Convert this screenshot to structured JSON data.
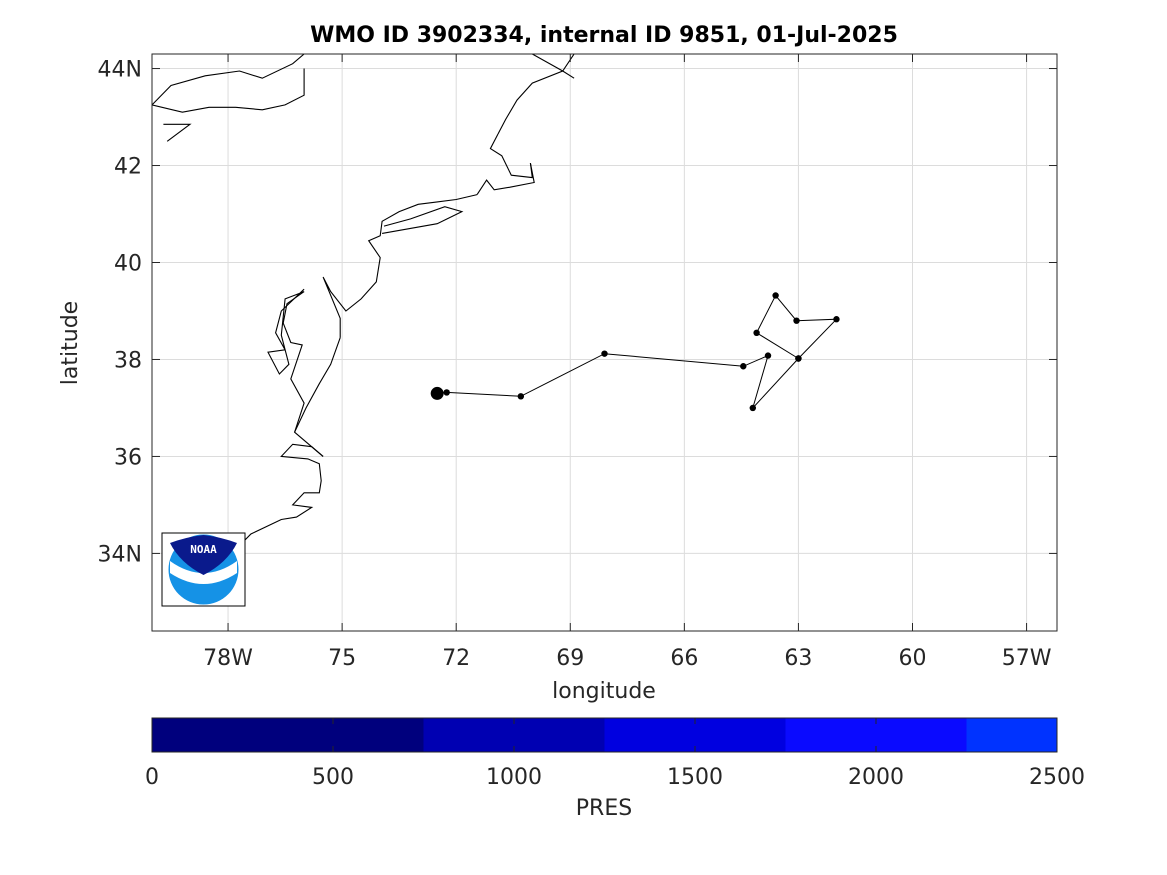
{
  "title": "WMO ID 3902334, internal ID 9851, 01-Jul-2025",
  "map": {
    "xlabel": "longitude",
    "ylabel": "latitude",
    "lon_range": [
      -80.0,
      -56.2
    ],
    "lat_range": [
      32.4,
      44.3
    ],
    "lon_ticks": [
      {
        "value": -78,
        "label": "78W"
      },
      {
        "value": -75,
        "label": "75"
      },
      {
        "value": -72,
        "label": "72"
      },
      {
        "value": -69,
        "label": "69"
      },
      {
        "value": -66,
        "label": "66"
      },
      {
        "value": -63,
        "label": "63"
      },
      {
        "value": -60,
        "label": "60"
      },
      {
        "value": -57,
        "label": "57W"
      }
    ],
    "lat_ticks": [
      {
        "value": 34,
        "label": "34N"
      },
      {
        "value": 36,
        "label": "36"
      },
      {
        "value": 38,
        "label": "38"
      },
      {
        "value": 40,
        "label": "40"
      },
      {
        "value": 42,
        "label": "42"
      },
      {
        "value": 44,
        "label": "44N"
      }
    ],
    "grid": true,
    "logo": "noaa-logo",
    "logo_text": "NOAA"
  },
  "chart_data": {
    "type": "scatter",
    "series": [
      {
        "lon": [
          -72.5,
          -72.25,
          -70.3,
          -68.1,
          -64.45,
          -63.8,
          -64.2,
          -63.9,
          -63.35,
          -62.25,
          -63.0,
          -64.4,
          -63.3,
          -64.2
        ],
        "lat": [
          37.3,
          37.32,
          37.24,
          38.12,
          37.86,
          38.08,
          37.0,
          37.86,
          39.32,
          38.8,
          38.83,
          38.02,
          38.55,
          37.0
        ],
        "start_marker": {
          "lon": -72.5,
          "lat": 37.3
        }
      }
    ],
    "track_order_note": ""
  },
  "track": {
    "points": [
      [
        -72.5,
        37.3
      ],
      [
        -72.25,
        37.32
      ],
      [
        -70.3,
        37.24
      ],
      [
        -68.1,
        38.12
      ],
      [
        -64.45,
        37.86
      ],
      [
        -63.8,
        38.08
      ],
      [
        -64.2,
        37.0
      ],
      [
        -63.0,
        38.02
      ],
      [
        -62.0,
        38.83
      ],
      [
        -63.05,
        38.8
      ],
      [
        -63.6,
        39.32
      ],
      [
        -64.1,
        38.55
      ],
      [
        -63.0,
        38.02
      ]
    ]
  },
  "colorbar": {
    "label": "PRES",
    "range": [
      0,
      2500
    ],
    "ticks": [
      0,
      500,
      1000,
      1500,
      2000,
      2500
    ],
    "segments": [
      {
        "from": 0,
        "to": 750,
        "color": "#00007d"
      },
      {
        "from": 750,
        "to": 1250,
        "color": "#0000b2"
      },
      {
        "from": 1250,
        "to": 1750,
        "color": "#0000e0"
      },
      {
        "from": 1750,
        "to": 2250,
        "color": "#0a0aff"
      },
      {
        "from": 2250,
        "to": 2500,
        "color": "#0033ff"
      }
    ]
  },
  "coastline": [
    [
      [
        -80.0,
        43.25
      ],
      [
        -79.5,
        43.65
      ],
      [
        -78.6,
        43.85
      ],
      [
        -77.7,
        43.95
      ],
      [
        -77.1,
        43.8
      ],
      [
        -76.3,
        44.1
      ],
      [
        -76.0,
        44.3
      ]
    ],
    [
      [
        -80.0,
        43.25
      ],
      [
        -79.2,
        43.1
      ],
      [
        -78.5,
        43.2
      ],
      [
        -77.8,
        43.2
      ],
      [
        -77.1,
        43.15
      ],
      [
        -76.5,
        43.25
      ],
      [
        -76.0,
        43.45
      ],
      [
        -76.0,
        44.0
      ]
    ],
    [
      [
        -79.7,
        42.85
      ],
      [
        -79.0,
        42.85
      ],
      [
        -79.6,
        42.5
      ]
    ],
    [
      [
        -70.0,
        44.3
      ],
      [
        -69.2,
        43.95
      ],
      [
        -68.9,
        43.8
      ]
    ],
    [
      [
        -70.9,
        42.65
      ],
      [
        -70.7,
        42.95
      ],
      [
        -70.4,
        43.35
      ],
      [
        -70.0,
        43.7
      ],
      [
        -69.2,
        43.95
      ],
      [
        -68.9,
        44.3
      ]
    ],
    [
      [
        -70.9,
        42.65
      ],
      [
        -71.1,
        42.35
      ],
      [
        -70.8,
        42.2
      ],
      [
        -70.55,
        41.8
      ],
      [
        -70.0,
        41.75
      ],
      [
        -70.05,
        42.05
      ]
    ],
    [
      [
        -70.05,
        42.05
      ],
      [
        -69.95,
        41.65
      ],
      [
        -70.6,
        41.55
      ],
      [
        -71.0,
        41.5
      ],
      [
        -71.2,
        41.7
      ],
      [
        -71.45,
        41.4
      ]
    ],
    [
      [
        -71.45,
        41.4
      ],
      [
        -72.0,
        41.3
      ],
      [
        -72.5,
        41.25
      ],
      [
        -73.0,
        41.2
      ],
      [
        -73.5,
        41.05
      ],
      [
        -73.95,
        40.85
      ],
      [
        -74.0,
        40.55
      ],
      [
        -74.3,
        40.45
      ],
      [
        -74.0,
        40.1
      ],
      [
        -74.1,
        39.6
      ],
      [
        -74.5,
        39.25
      ],
      [
        -74.9,
        39.0
      ],
      [
        -75.3,
        39.4
      ],
      [
        -75.5,
        39.7
      ],
      [
        -75.05,
        38.85
      ],
      [
        -75.05,
        38.45
      ]
    ],
    [
      [
        -73.95,
        40.6
      ],
      [
        -72.5,
        40.8
      ],
      [
        -71.85,
        41.05
      ],
      [
        -72.3,
        41.15
      ],
      [
        -73.2,
        40.9
      ],
      [
        -73.9,
        40.75
      ]
    ],
    [
      [
        -75.05,
        38.45
      ],
      [
        -75.3,
        37.9
      ],
      [
        -75.6,
        37.5
      ],
      [
        -75.95,
        37.0
      ],
      [
        -76.25,
        36.5
      ],
      [
        -75.5,
        36.0
      ]
    ],
    [
      [
        -76.0,
        39.4
      ],
      [
        -76.45,
        39.15
      ],
      [
        -76.55,
        38.75
      ],
      [
        -76.35,
        38.35
      ],
      [
        -76.05,
        38.3
      ],
      [
        -76.35,
        37.6
      ],
      [
        -76.0,
        37.1
      ],
      [
        -76.25,
        36.5
      ]
    ],
    [
      [
        -76.0,
        39.4
      ],
      [
        -76.5,
        39.25
      ],
      [
        -76.6,
        38.5
      ],
      [
        -76.4,
        37.9
      ],
      [
        -76.65,
        37.7
      ],
      [
        -76.95,
        38.15
      ],
      [
        -76.5,
        38.2
      ],
      [
        -76.75,
        38.55
      ],
      [
        -76.6,
        39.0
      ],
      [
        -76.0,
        39.45
      ]
    ],
    [
      [
        -75.5,
        36.0
      ],
      [
        -75.8,
        36.2
      ],
      [
        -76.3,
        36.25
      ],
      [
        -76.6,
        36.0
      ],
      [
        -75.9,
        35.95
      ],
      [
        -75.6,
        35.85
      ],
      [
        -75.55,
        35.5
      ],
      [
        -75.6,
        35.25
      ],
      [
        -76.0,
        35.25
      ],
      [
        -76.3,
        35.0
      ],
      [
        -75.8,
        34.95
      ],
      [
        -76.2,
        34.75
      ],
      [
        -76.6,
        34.7
      ],
      [
        -77.0,
        34.55
      ],
      [
        -77.4,
        34.4
      ],
      [
        -77.9,
        34.0
      ]
    ]
  ]
}
